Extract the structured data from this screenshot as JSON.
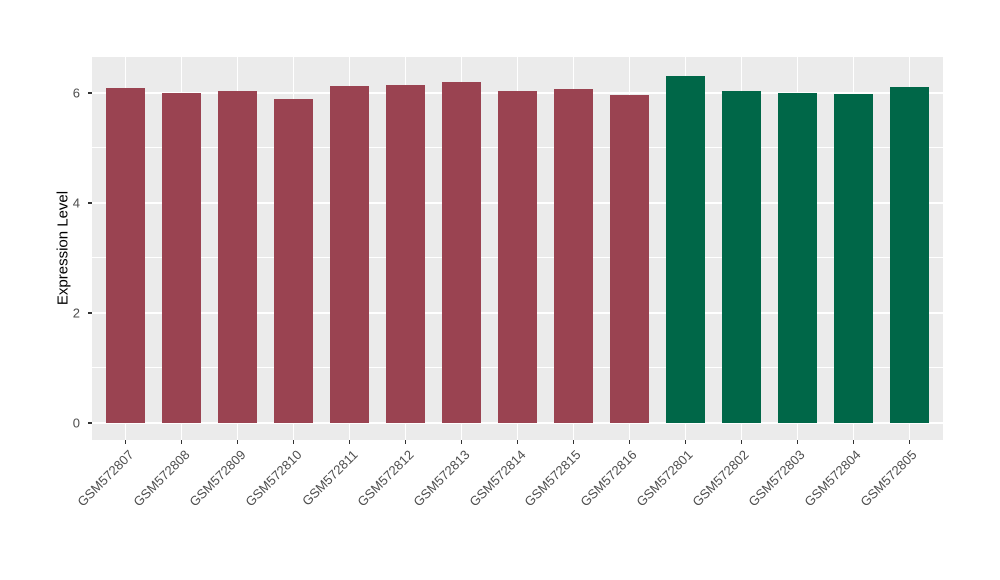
{
  "chart_data": {
    "type": "bar",
    "ylabel": "Expression Level",
    "ylim": [
      0,
      6.65
    ],
    "yticks": [
      {
        "value": 0,
        "label": "0"
      },
      {
        "value": 2,
        "label": "2"
      },
      {
        "value": 4,
        "label": "4"
      },
      {
        "value": 6,
        "label": "6"
      }
    ],
    "yminor": [
      1,
      3,
      5
    ],
    "grid": "on",
    "legend": "none",
    "bar_width_ratio": 0.7,
    "bars": [
      {
        "label": "GSM572807",
        "value": 6.09,
        "group": "group1"
      },
      {
        "label": "GSM572808",
        "value": 5.99,
        "group": "group1"
      },
      {
        "label": "GSM572809",
        "value": 6.04,
        "group": "group1"
      },
      {
        "label": "GSM572810",
        "value": 5.88,
        "group": "group1"
      },
      {
        "label": "GSM572811",
        "value": 6.12,
        "group": "group1"
      },
      {
        "label": "GSM572812",
        "value": 6.14,
        "group": "group1"
      },
      {
        "label": "GSM572813",
        "value": 6.19,
        "group": "group1"
      },
      {
        "label": "GSM572814",
        "value": 6.04,
        "group": "group1"
      },
      {
        "label": "GSM572815",
        "value": 6.06,
        "group": "group1"
      },
      {
        "label": "GSM572816",
        "value": 5.96,
        "group": "group1"
      },
      {
        "label": "GSM572801",
        "value": 6.31,
        "group": "group2"
      },
      {
        "label": "GSM572802",
        "value": 6.03,
        "group": "group2"
      },
      {
        "label": "GSM572803",
        "value": 5.99,
        "group": "group2"
      },
      {
        "label": "GSM572804",
        "value": 5.97,
        "group": "group2"
      },
      {
        "label": "GSM572805",
        "value": 6.11,
        "group": "group2"
      }
    ],
    "colors": {
      "group1": "#9a4351",
      "group2": "#006748",
      "panel_bg": "#ebebeb",
      "grid": "#ffffff",
      "tick": "#333333",
      "axis_text": "#4d4d4d",
      "axis_title": "#000000"
    }
  }
}
